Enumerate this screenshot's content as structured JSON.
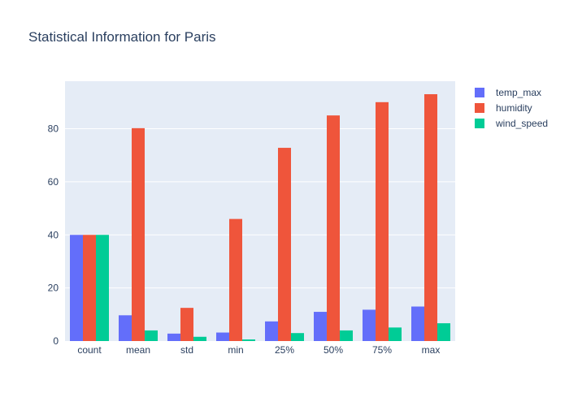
{
  "chart_data": {
    "type": "bar",
    "title": "Statistical Information for Paris",
    "xlabel": "",
    "ylabel": "",
    "categories": [
      "count",
      "mean",
      "std",
      "min",
      "25%",
      "50%",
      "75%",
      "max"
    ],
    "series": [
      {
        "name": "temp_max",
        "color": "#636efa",
        "values": [
          40,
          9.7,
          2.8,
          3.2,
          7.4,
          11.0,
          11.8,
          13.0
        ]
      },
      {
        "name": "humidity",
        "color": "#ef553b",
        "values": [
          40,
          80.2,
          12.5,
          46.0,
          72.8,
          85.0,
          90.0,
          93.0
        ]
      },
      {
        "name": "wind_speed",
        "color": "#00cc96",
        "values": [
          40,
          4.0,
          1.6,
          0.6,
          3.0,
          4.0,
          5.1,
          6.7
        ]
      }
    ],
    "yticks": [
      0,
      20,
      40,
      60,
      80
    ],
    "ylim": [
      0,
      97.9
    ],
    "grid": true,
    "legend_position": "top-right",
    "plot_background": "#e5ecf6"
  }
}
